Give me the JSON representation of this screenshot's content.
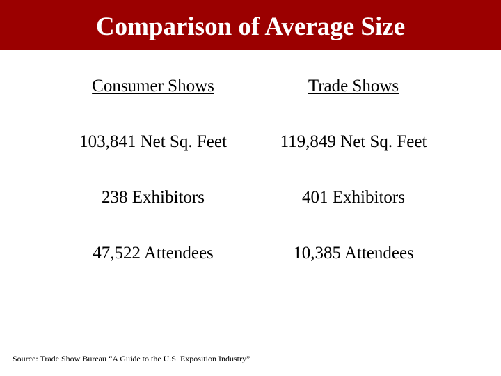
{
  "header": {
    "title": "Comparison of Average Size"
  },
  "columns": [
    {
      "heading": "Consumer Shows",
      "items": [
        "103,841 Net Sq. Feet",
        "238 Exhibitors",
        "47,522 Attendees"
      ]
    },
    {
      "heading": "Trade Shows",
      "items": [
        "119,849 Net Sq. Feet",
        "401 Exhibitors",
        "10,385 Attendees"
      ]
    }
  ],
  "source": "Source:  Trade Show Bureau “A Guide to the U.S. Exposition Industry”"
}
